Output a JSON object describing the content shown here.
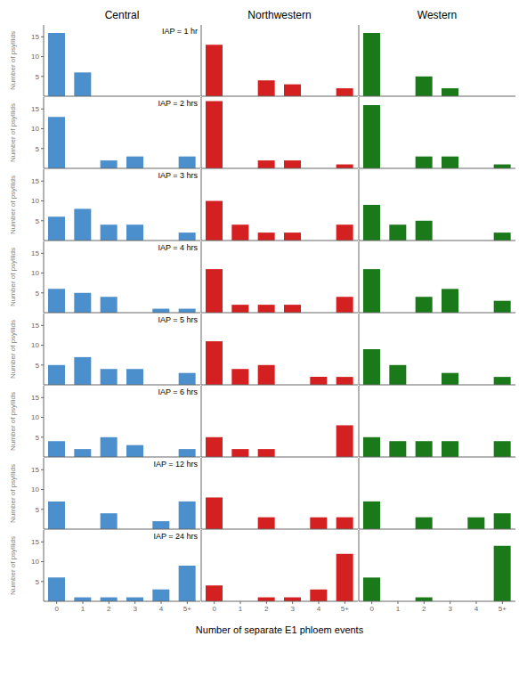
{
  "chart_data": [
    {
      "type": "bar",
      "title": "Central",
      "ylabel": "Number of psyllids",
      "annotation": "IAP = 1 hr",
      "categories": [
        "0",
        "1",
        "2",
        "3",
        "4",
        "5+"
      ],
      "values": [
        16,
        6,
        0,
        0,
        0,
        0
      ],
      "color": "#4B8FCC",
      "ylim": [
        0,
        18
      ],
      "yticks": [
        5,
        10,
        15
      ],
      "grid": false,
      "tick_labels": "y"
    },
    {
      "type": "bar",
      "title": "Northwestern",
      "categories": [
        "0",
        "1",
        "2",
        "3",
        "4",
        "5+"
      ],
      "values": [
        13,
        0,
        4,
        3,
        0,
        2
      ],
      "color": "#D42020",
      "ylim": [
        0,
        18
      ],
      "yticks": [
        5,
        10,
        15
      ],
      "grid": false,
      "tick_labels": false
    },
    {
      "type": "bar",
      "title": "Western",
      "categories": [
        "0",
        "1",
        "2",
        "3",
        "4",
        "5+"
      ],
      "values": [
        16,
        0,
        5,
        2,
        0,
        0
      ],
      "color": "#1A7A1A",
      "ylim": [
        0,
        18
      ],
      "yticks": [
        5,
        10,
        15
      ],
      "grid": false,
      "tick_labels": false
    },
    {
      "type": "bar",
      "ylabel": "Number of psyllids",
      "annotation": "IAP = 2 hrs",
      "categories": [
        "0",
        "1",
        "2",
        "3",
        "4",
        "5+"
      ],
      "values": [
        13,
        0,
        2,
        3,
        0,
        3
      ],
      "color": "#4B8FCC",
      "ylim": [
        0,
        18
      ],
      "yticks": [
        5,
        10,
        15
      ],
      "grid": false,
      "tick_labels": "y"
    },
    {
      "type": "bar",
      "categories": [
        "0",
        "1",
        "2",
        "3",
        "4",
        "5+"
      ],
      "values": [
        17,
        0,
        2,
        2,
        0,
        1
      ],
      "color": "#D42020",
      "ylim": [
        0,
        18
      ],
      "yticks": [
        5,
        10,
        15
      ],
      "grid": false,
      "tick_labels": false
    },
    {
      "type": "bar",
      "categories": [
        "0",
        "1",
        "2",
        "3",
        "4",
        "5+"
      ],
      "values": [
        16,
        0,
        3,
        3,
        0,
        1
      ],
      "color": "#1A7A1A",
      "ylim": [
        0,
        18
      ],
      "yticks": [
        5,
        10,
        15
      ],
      "grid": false,
      "tick_labels": false
    },
    {
      "type": "bar",
      "ylabel": "Number of psyllids",
      "annotation": "IAP = 3 hrs",
      "categories": [
        "0",
        "1",
        "2",
        "3",
        "4",
        "5+"
      ],
      "values": [
        6,
        8,
        4,
        4,
        0,
        2
      ],
      "color": "#4B8FCC",
      "ylim": [
        0,
        18
      ],
      "yticks": [
        5,
        10,
        15
      ],
      "grid": false,
      "tick_labels": "y"
    },
    {
      "type": "bar",
      "categories": [
        "0",
        "1",
        "2",
        "3",
        "4",
        "5+"
      ],
      "values": [
        10,
        4,
        2,
        2,
        0,
        4
      ],
      "color": "#D42020",
      "ylim": [
        0,
        18
      ],
      "yticks": [
        5,
        10,
        15
      ],
      "grid": false,
      "tick_labels": false
    },
    {
      "type": "bar",
      "categories": [
        "0",
        "1",
        "2",
        "3",
        "4",
        "5+"
      ],
      "values": [
        9,
        4,
        5,
        0,
        0,
        2
      ],
      "color": "#1A7A1A",
      "ylim": [
        0,
        18
      ],
      "yticks": [
        5,
        10,
        15
      ],
      "grid": false,
      "tick_labels": false
    },
    {
      "type": "bar",
      "ylabel": "Number of psyllids",
      "annotation": "IAP = 4 hrs",
      "categories": [
        "0",
        "1",
        "2",
        "3",
        "4",
        "5+"
      ],
      "values": [
        6,
        5,
        4,
        0,
        1,
        1
      ],
      "color": "#4B8FCC",
      "ylim": [
        0,
        18
      ],
      "yticks": [
        5,
        10,
        15
      ],
      "grid": false,
      "tick_labels": "y"
    },
    {
      "type": "bar",
      "categories": [
        "0",
        "1",
        "2",
        "3",
        "4",
        "5+"
      ],
      "values": [
        11,
        2,
        2,
        2,
        0,
        4
      ],
      "color": "#D42020",
      "ylim": [
        0,
        18
      ],
      "yticks": [
        5,
        10,
        15
      ],
      "grid": false,
      "tick_labels": false
    },
    {
      "type": "bar",
      "categories": [
        "0",
        "1",
        "2",
        "3",
        "4",
        "5+"
      ],
      "values": [
        11,
        0,
        4,
        6,
        0,
        3
      ],
      "color": "#1A7A1A",
      "ylim": [
        0,
        18
      ],
      "yticks": [
        5,
        10,
        15
      ],
      "grid": false,
      "tick_labels": false
    },
    {
      "type": "bar",
      "ylabel": "Number of psyllids",
      "annotation": "IAP = 5 hrs",
      "categories": [
        "0",
        "1",
        "2",
        "3",
        "4",
        "5+"
      ],
      "values": [
        5,
        7,
        4,
        4,
        0,
        3
      ],
      "color": "#4B8FCC",
      "ylim": [
        0,
        18
      ],
      "yticks": [
        5,
        10,
        15
      ],
      "grid": false,
      "tick_labels": "y"
    },
    {
      "type": "bar",
      "categories": [
        "0",
        "1",
        "2",
        "3",
        "4",
        "5+"
      ],
      "values": [
        11,
        4,
        5,
        0,
        2,
        2
      ],
      "color": "#D42020",
      "ylim": [
        0,
        18
      ],
      "yticks": [
        5,
        10,
        15
      ],
      "grid": false,
      "tick_labels": false
    },
    {
      "type": "bar",
      "categories": [
        "0",
        "1",
        "2",
        "3",
        "4",
        "5+"
      ],
      "values": [
        9,
        5,
        0,
        3,
        0,
        2
      ],
      "color": "#1A7A1A",
      "ylim": [
        0,
        18
      ],
      "yticks": [
        5,
        10,
        15
      ],
      "grid": false,
      "tick_labels": false
    },
    {
      "type": "bar",
      "ylabel": "Number of psyllids",
      "annotation": "IAP = 6 hrs",
      "categories": [
        "0",
        "1",
        "2",
        "3",
        "4",
        "5+"
      ],
      "values": [
        4,
        2,
        5,
        3,
        0,
        2
      ],
      "color": "#4B8FCC",
      "ylim": [
        0,
        18
      ],
      "yticks": [
        5,
        10,
        15
      ],
      "grid": false,
      "tick_labels": "y"
    },
    {
      "type": "bar",
      "categories": [
        "0",
        "1",
        "2",
        "3",
        "4",
        "5+"
      ],
      "values": [
        5,
        2,
        2,
        0,
        0,
        8
      ],
      "color": "#D42020",
      "ylim": [
        0,
        18
      ],
      "yticks": [
        5,
        10,
        15
      ],
      "grid": false,
      "tick_labels": false
    },
    {
      "type": "bar",
      "categories": [
        "0",
        "1",
        "2",
        "3",
        "4",
        "5+"
      ],
      "values": [
        5,
        4,
        4,
        4,
        0,
        4
      ],
      "color": "#1A7A1A",
      "ylim": [
        0,
        18
      ],
      "yticks": [
        5,
        10,
        15
      ],
      "grid": false,
      "tick_labels": false
    },
    {
      "type": "bar",
      "ylabel": "Number of psyllids",
      "annotation": "IAP = 12 hrs",
      "categories": [
        "0",
        "1",
        "2",
        "3",
        "4",
        "5+"
      ],
      "values": [
        7,
        0,
        4,
        0,
        2,
        7
      ],
      "color": "#4B8FCC",
      "ylim": [
        0,
        18
      ],
      "yticks": [
        5,
        10,
        15
      ],
      "grid": false,
      "tick_labels": "y"
    },
    {
      "type": "bar",
      "categories": [
        "0",
        "1",
        "2",
        "3",
        "4",
        "5+"
      ],
      "values": [
        8,
        0,
        3,
        0,
        3,
        3
      ],
      "color": "#D42020",
      "ylim": [
        0,
        18
      ],
      "yticks": [
        5,
        10,
        15
      ],
      "grid": false,
      "tick_labels": false
    },
    {
      "type": "bar",
      "categories": [
        "0",
        "1",
        "2",
        "3",
        "4",
        "5+"
      ],
      "values": [
        7,
        0,
        3,
        0,
        3,
        4
      ],
      "color": "#1A7A1A",
      "ylim": [
        0,
        18
      ],
      "yticks": [
        5,
        10,
        15
      ],
      "grid": false,
      "tick_labels": false
    },
    {
      "type": "bar",
      "ylabel": "Number of psyllids",
      "annotation": "IAP = 24 hrs",
      "categories": [
        "0",
        "1",
        "2",
        "3",
        "4",
        "5+"
      ],
      "values": [
        6,
        1,
        1,
        1,
        3,
        9
      ],
      "color": "#4B8FCC",
      "ylim": [
        0,
        18
      ],
      "yticks": [
        5,
        10,
        15
      ],
      "grid": false
    },
    {
      "type": "bar",
      "xlabel": "Number of separate E1 phloem events",
      "categories": [
        "0",
        "1",
        "2",
        "3",
        "4",
        "5+"
      ],
      "values": [
        4,
        0,
        1,
        1,
        3,
        12
      ],
      "color": "#D42020",
      "ylim": [
        0,
        18
      ],
      "yticks": [
        5,
        10,
        15
      ],
      "grid": false,
      "tick_labels": "x"
    },
    {
      "type": "bar",
      "categories": [
        "0",
        "1",
        "2",
        "3",
        "4",
        "5+"
      ],
      "values": [
        6,
        0,
        1,
        0,
        0,
        14
      ],
      "color": "#1A7A1A",
      "ylim": [
        0,
        18
      ],
      "yticks": [
        5,
        10,
        15
      ],
      "grid": false,
      "tick_labels": "x"
    }
  ]
}
